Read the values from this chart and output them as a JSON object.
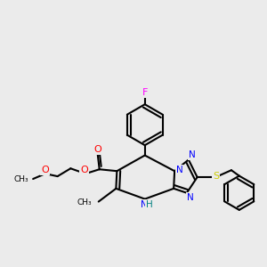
{
  "background_color": "#ebebeb",
  "bond_color": "#000000",
  "atom_colors": {
    "N": "#0000ff",
    "O": "#ff0000",
    "S": "#cccc00",
    "F": "#ff00ff",
    "H": "#008080",
    "C": "#000000"
  },
  "figsize": [
    3.0,
    3.0
  ],
  "dpi": 100
}
